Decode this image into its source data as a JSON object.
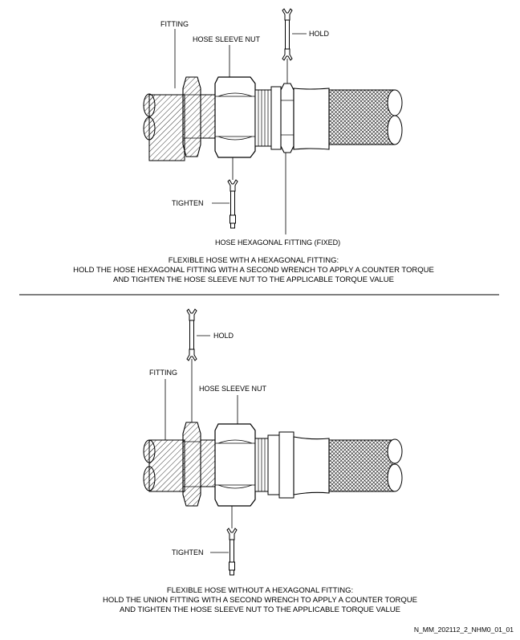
{
  "figure_top": {
    "labels": {
      "fitting": "FITTING",
      "hose_sleeve_nut": "HOSE SLEEVE NUT",
      "hold": "HOLD",
      "tighten": "TIGHTEN",
      "hose_hex_fitting": "HOSE HEXAGONAL FITTING (FIXED)"
    },
    "caption": [
      "FLEXIBLE HOSE WITH A HEXAGONAL FITTING:",
      "HOLD THE HOSE HEXAGONAL FITTING WITH A SECOND WRENCH TO APPLY A COUNTER TORQUE",
      "AND TIGHTEN THE HOSE SLEEVE NUT TO THE APPLICABLE TORQUE VALUE"
    ]
  },
  "figure_bottom": {
    "labels": {
      "hold": "HOLD",
      "fitting": "FITTING",
      "hose_sleeve_nut": "HOSE SLEEVE NUT",
      "tighten": "TIGHTEN"
    },
    "caption": [
      "FLEXIBLE HOSE WITHOUT A HEXAGONAL FITTING:",
      "HOLD THE UNION FITTING WITH A SECOND WRENCH TO APPLY A COUNTER TORQUE",
      "AND TIGHTEN THE HOSE SLEEVE NUT TO THE APPLICABLE TORQUE VALUE"
    ]
  },
  "reference_code": "N_MM_202112_2_NHM0_01_01"
}
